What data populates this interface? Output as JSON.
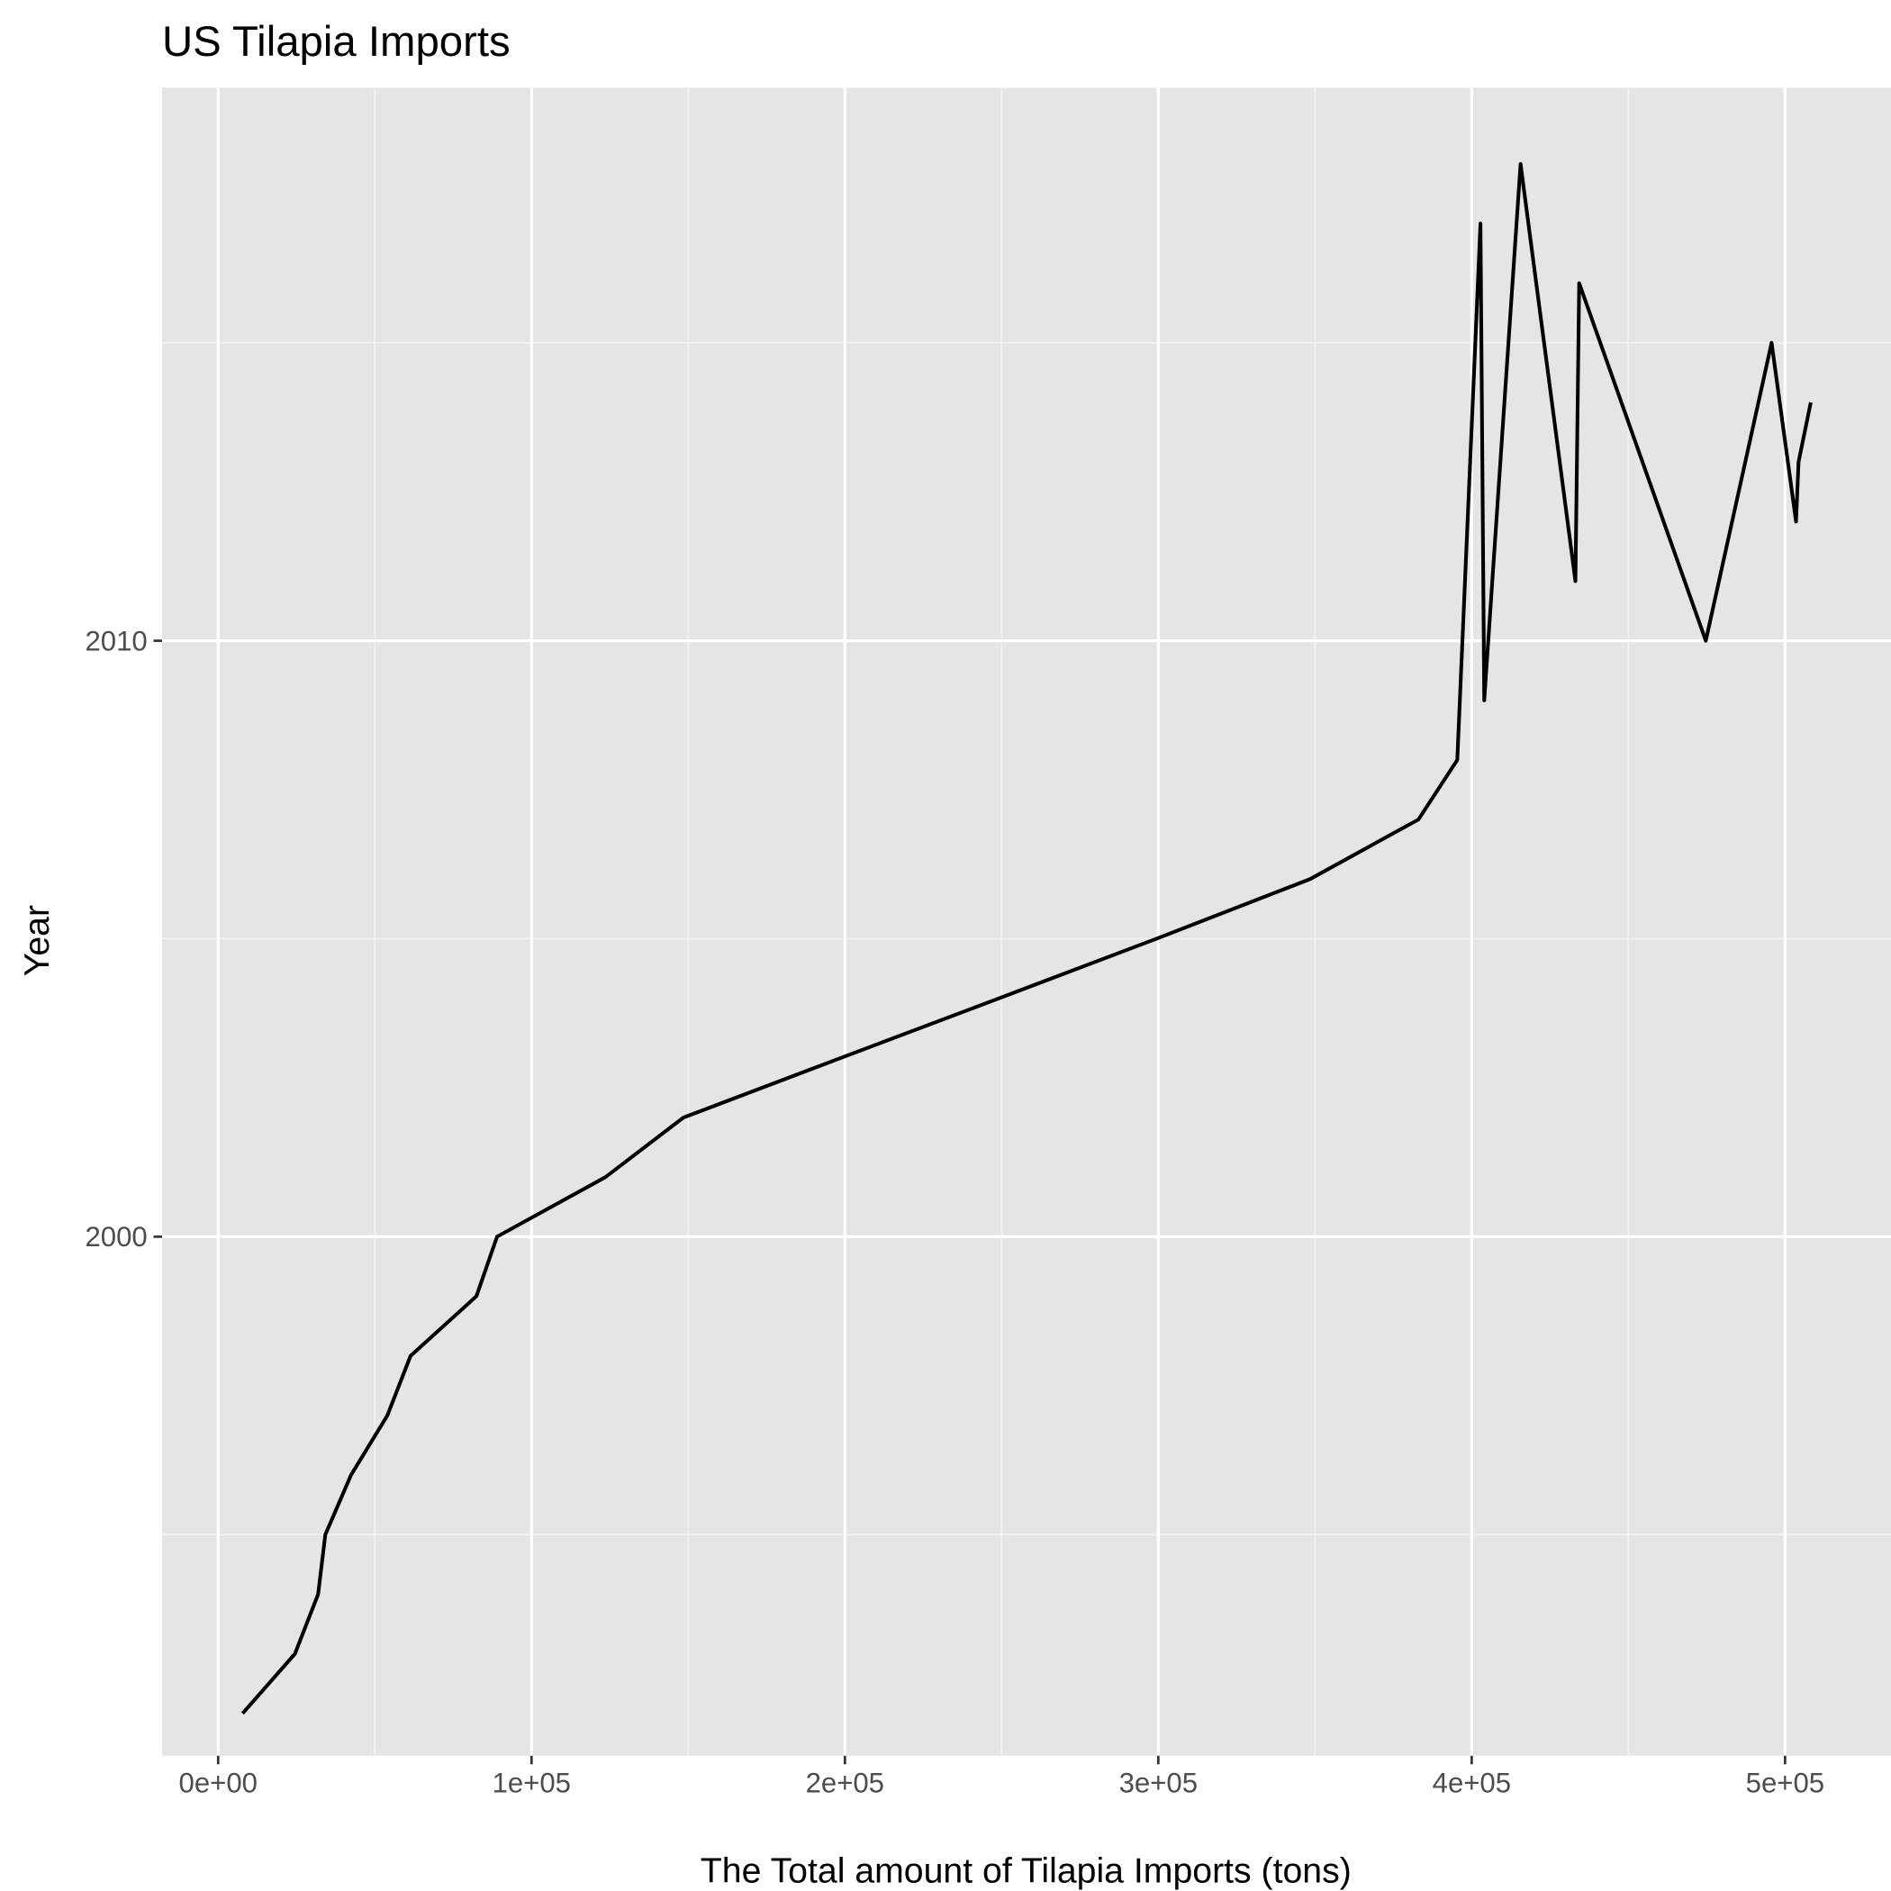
{
  "chart_data": {
    "type": "line",
    "title": "US Tilapia Imports",
    "x_label": "The Total amount of Tilapia Imports (tons)",
    "y_label": "Year",
    "x": [
      7800,
      24500,
      31900,
      34200,
      42400,
      54000,
      61400,
      82400,
      89000,
      123600,
      148500,
      198700,
      249200,
      299400,
      348400,
      383000,
      395400,
      402800,
      404000,
      415600,
      433100,
      434300,
      474700,
      495700,
      503500,
      504300,
      508200
    ],
    "values": [
      1992,
      1993,
      1994,
      1995,
      1996,
      1997,
      1998,
      1999,
      2000,
      2001,
      2002,
      2003,
      2004,
      2005,
      2006,
      2007,
      2008,
      2017,
      2009,
      2018,
      2011,
      2016,
      2010,
      2015,
      2012,
      2013,
      2014
    ],
    "color": "#000000",
    "xlim": [
      -17900,
      533800
    ],
    "ylim": [
      1991.29,
      2019.28
    ],
    "xticks": [
      {
        "value": 0,
        "label": "0e+00"
      },
      {
        "value": 100000,
        "label": "1e+05"
      },
      {
        "value": 200000,
        "label": "2e+05"
      },
      {
        "value": 300000,
        "label": "3e+05"
      },
      {
        "value": 400000,
        "label": "4e+05"
      },
      {
        "value": 500000,
        "label": "5e+05"
      }
    ],
    "yticks": [
      2000,
      2010
    ],
    "xminor": [
      50000,
      150000,
      250000,
      350000,
      450000
    ],
    "yminor": [
      1995,
      2005,
      2015
    ],
    "grid": true
  }
}
